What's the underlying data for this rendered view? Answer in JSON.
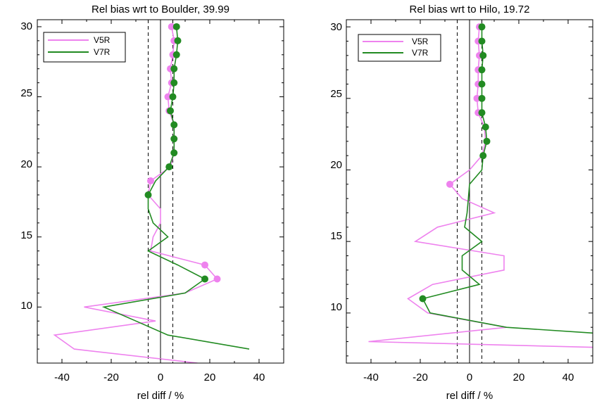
{
  "chart_data": [
    {
      "type": "line",
      "title": "Rel bias wrt to Boulder, 39.99",
      "xlabel": "rel diff / %",
      "ylabel": "",
      "xlim": [
        -50,
        50
      ],
      "ylim": [
        6,
        30.5
      ],
      "xticks": [
        "-40",
        "-20",
        "0",
        "20",
        "40"
      ],
      "yticks": [
        "10",
        "15",
        "20",
        "25",
        "30"
      ],
      "xtick_values": [
        -40,
        -20,
        0,
        20,
        40
      ],
      "ytick_values": [
        10,
        15,
        20,
        25,
        30
      ],
      "vlines_dashed": [
        -5,
        5
      ],
      "vline_solid": 0,
      "legend_position": "top-left",
      "series": [
        {
          "name": "V5R",
          "color": "#ee82ee",
          "line": [
            [
              4.5,
              30
            ],
            [
              5.5,
              29
            ],
            [
              5,
              28
            ],
            [
              4,
              27
            ],
            [
              4.5,
              26
            ],
            [
              3,
              25
            ],
            [
              3.5,
              24
            ],
            [
              5.5,
              23
            ],
            [
              5.5,
              22
            ],
            [
              5.5,
              21
            ],
            [
              4,
              20
            ],
            [
              -4,
              19
            ],
            [
              -5,
              18
            ],
            [
              0,
              17
            ],
            [
              0,
              16
            ],
            [
              -3,
              15
            ],
            [
              -4,
              14
            ],
            [
              18,
              13
            ],
            [
              23,
              12
            ],
            [
              10,
              11
            ],
            [
              -31,
              10
            ],
            [
              -2,
              9
            ],
            [
              -43,
              8
            ],
            [
              -35,
              7
            ],
            [
              15,
              6
            ]
          ],
          "markers": [
            [
              4.5,
              30
            ],
            [
              5.5,
              29
            ],
            [
              5,
              28
            ],
            [
              4,
              27
            ],
            [
              4.5,
              26
            ],
            [
              3,
              25
            ],
            [
              3.5,
              24
            ],
            [
              -4,
              19
            ],
            [
              18,
              13
            ],
            [
              23,
              12
            ]
          ]
        },
        {
          "name": "V7R",
          "color": "#228b22",
          "line": [
            [
              6.5,
              30
            ],
            [
              7,
              29
            ],
            [
              6.5,
              28
            ],
            [
              5.5,
              27
            ],
            [
              5.5,
              26
            ],
            [
              5,
              25
            ],
            [
              4,
              24
            ],
            [
              5.5,
              23
            ],
            [
              5.5,
              22
            ],
            [
              5.5,
              21
            ],
            [
              3.5,
              20
            ],
            [
              -2,
              19
            ],
            [
              -5,
              18
            ],
            [
              -5,
              17
            ],
            [
              -3,
              16
            ],
            [
              3,
              15
            ],
            [
              -5,
              14
            ],
            [
              7,
              13
            ],
            [
              18,
              12
            ],
            [
              10,
              11
            ],
            [
              -23,
              10
            ],
            [
              -10,
              9
            ],
            [
              3,
              8
            ],
            [
              36,
              7
            ]
          ],
          "markers": [
            [
              6.5,
              30
            ],
            [
              7,
              29
            ],
            [
              6.5,
              28
            ],
            [
              5.5,
              27
            ],
            [
              5.5,
              26
            ],
            [
              5,
              25
            ],
            [
              4,
              24
            ],
            [
              5.5,
              23
            ],
            [
              5.5,
              22
            ],
            [
              5.5,
              21
            ],
            [
              3.5,
              20
            ],
            [
              -5,
              18
            ],
            [
              18,
              12
            ]
          ]
        }
      ]
    },
    {
      "type": "line",
      "title": "Rel bias wrt to Hilo, 19.72",
      "xlabel": "rel diff / %",
      "ylabel": "",
      "xlim": [
        -50,
        50
      ],
      "ylim": [
        6.5,
        30.5
      ],
      "xticks": [
        "-40",
        "-20",
        "0",
        "20",
        "40"
      ],
      "yticks": [
        "10",
        "15",
        "20",
        "25",
        "30"
      ],
      "xtick_values": [
        -40,
        -20,
        0,
        20,
        40
      ],
      "ytick_values": [
        10,
        15,
        20,
        25,
        30
      ],
      "vlines_dashed": [
        -5,
        5
      ],
      "vline_solid": 0,
      "legend_position": "top-left",
      "series": [
        {
          "name": "V5R",
          "color": "#ee82ee",
          "line": [
            [
              4,
              30
            ],
            [
              3.5,
              29
            ],
            [
              4,
              28
            ],
            [
              3.5,
              27
            ],
            [
              3.5,
              26
            ],
            [
              3,
              25
            ],
            [
              3.5,
              24
            ],
            [
              6,
              23
            ],
            [
              6.5,
              22
            ],
            [
              5,
              21
            ],
            [
              0,
              20
            ],
            [
              -8,
              19
            ],
            [
              -3,
              18
            ],
            [
              10,
              17
            ],
            [
              -13,
              16
            ],
            [
              -22,
              15
            ],
            [
              14,
              14
            ],
            [
              14,
              13
            ],
            [
              -15,
              12
            ],
            [
              -25,
              11
            ],
            [
              -17,
              10
            ],
            [
              15,
              9
            ],
            [
              -41,
              8
            ],
            [
              50,
              7.6
            ]
          ],
          "markers": [
            [
              4,
              30
            ],
            [
              3.5,
              29
            ],
            [
              4,
              28
            ],
            [
              3.5,
              27
            ],
            [
              3.5,
              26
            ],
            [
              3,
              25
            ],
            [
              3.5,
              24
            ],
            [
              -8,
              19
            ]
          ]
        },
        {
          "name": "V7R",
          "color": "#228b22",
          "line": [
            [
              5,
              30
            ],
            [
              5,
              29
            ],
            [
              5.5,
              28
            ],
            [
              5,
              27
            ],
            [
              5,
              26
            ],
            [
              5,
              25
            ],
            [
              5,
              24
            ],
            [
              6.5,
              23
            ],
            [
              7,
              22
            ],
            [
              5.5,
              21
            ],
            [
              5,
              20
            ],
            [
              0,
              19
            ],
            [
              -0.5,
              18
            ],
            [
              -1,
              17
            ],
            [
              -2,
              16
            ],
            [
              5,
              15
            ],
            [
              -3,
              14
            ],
            [
              -3,
              13
            ],
            [
              4,
              12
            ],
            [
              -19,
              11
            ],
            [
              -16,
              10
            ],
            [
              15,
              9
            ],
            [
              50,
              8.6
            ]
          ],
          "markers": [
            [
              5,
              30
            ],
            [
              5,
              29
            ],
            [
              5.5,
              28
            ],
            [
              5,
              27
            ],
            [
              5,
              26
            ],
            [
              5,
              25
            ],
            [
              5,
              24
            ],
            [
              6.5,
              23
            ],
            [
              7,
              22
            ],
            [
              5.5,
              21
            ],
            [
              -19,
              11
            ]
          ]
        }
      ]
    }
  ]
}
